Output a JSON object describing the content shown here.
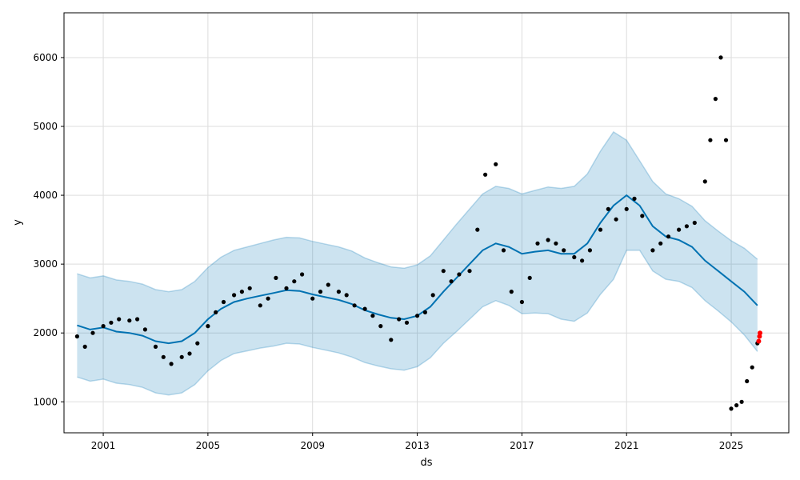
{
  "chart_data": {
    "type": "line",
    "title": "",
    "xlabel": "ds",
    "ylabel": "y",
    "xlim": [
      1999.5,
      2027.2
    ],
    "ylim": [
      550,
      6650
    ],
    "grid": true,
    "x_ticks": [
      2001,
      2005,
      2009,
      2013,
      2017,
      2021,
      2025
    ],
    "y_ticks": [
      1000,
      2000,
      3000,
      4000,
      5000,
      6000
    ],
    "colors": {
      "forecast": "#0072B2",
      "uncertainty": "#0072B2",
      "observed": "#000000",
      "highlight": "#FF0000"
    },
    "series": [
      {
        "role": "forecast",
        "x": [
          2000.0,
          2000.5,
          2001.0,
          2001.5,
          2002.0,
          2002.5,
          2003.0,
          2003.5,
          2004.0,
          2004.5,
          2005.0,
          2005.5,
          2006.0,
          2006.5,
          2007.0,
          2007.5,
          2008.0,
          2008.5,
          2009.0,
          2009.5,
          2010.0,
          2010.5,
          2011.0,
          2011.5,
          2012.0,
          2012.5,
          2013.0,
          2013.5,
          2014.0,
          2014.5,
          2015.0,
          2015.5,
          2016.0,
          2016.5,
          2017.0,
          2017.5,
          2018.0,
          2018.5,
          2019.0,
          2019.5,
          2020.0,
          2020.5,
          2021.0,
          2021.5,
          2022.0,
          2022.5,
          2023.0,
          2023.5,
          2024.0,
          2024.5,
          2025.0,
          2025.5,
          2026.0
        ],
        "y": [
          2110,
          2050,
          2080,
          2020,
          2000,
          1960,
          1880,
          1850,
          1880,
          2000,
          2200,
          2350,
          2450,
          2500,
          2540,
          2580,
          2620,
          2610,
          2560,
          2520,
          2480,
          2420,
          2330,
          2270,
          2220,
          2200,
          2250,
          2380,
          2600,
          2800,
          3000,
          3200,
          3300,
          3250,
          3150,
          3180,
          3200,
          3150,
          3150,
          3300,
          3600,
          3850,
          4000,
          3850,
          3550,
          3400,
          3350,
          3250,
          3050,
          2900,
          2750,
          2600,
          2400
        ]
      },
      {
        "role": "uncertainty",
        "x": [
          2000.0,
          2000.5,
          2001.0,
          2001.5,
          2002.0,
          2002.5,
          2003.0,
          2003.5,
          2004.0,
          2004.5,
          2005.0,
          2005.5,
          2006.0,
          2006.5,
          2007.0,
          2007.5,
          2008.0,
          2008.5,
          2009.0,
          2009.5,
          2010.0,
          2010.5,
          2011.0,
          2011.5,
          2012.0,
          2012.5,
          2013.0,
          2013.5,
          2014.0,
          2014.5,
          2015.0,
          2015.5,
          2016.0,
          2016.5,
          2017.0,
          2017.5,
          2018.0,
          2018.5,
          2019.0,
          2019.5,
          2020.0,
          2020.5,
          2021.0,
          2021.5,
          2022.0,
          2022.5,
          2023.0,
          2023.5,
          2024.0,
          2024.5,
          2025.0,
          2025.5,
          2026.0
        ],
        "upper": [
          2860,
          2800,
          2830,
          2770,
          2750,
          2710,
          2630,
          2600,
          2630,
          2750,
          2950,
          3100,
          3200,
          3250,
          3300,
          3350,
          3390,
          3380,
          3330,
          3290,
          3250,
          3190,
          3090,
          3020,
          2960,
          2940,
          2990,
          3120,
          3350,
          3580,
          3800,
          4020,
          4130,
          4100,
          4020,
          4070,
          4120,
          4100,
          4130,
          4310,
          4640,
          4920,
          4800,
          4500,
          4200,
          4020,
          3950,
          3840,
          3630,
          3480,
          3340,
          3230,
          3070
        ],
        "lower": [
          1360,
          1300,
          1330,
          1270,
          1250,
          1210,
          1130,
          1100,
          1130,
          1250,
          1450,
          1600,
          1700,
          1740,
          1780,
          1810,
          1850,
          1840,
          1790,
          1750,
          1710,
          1650,
          1570,
          1520,
          1480,
          1460,
          1510,
          1640,
          1850,
          2020,
          2200,
          2380,
          2470,
          2400,
          2280,
          2290,
          2280,
          2200,
          2170,
          2290,
          2560,
          2780,
          3200,
          3200,
          2900,
          2780,
          2750,
          2660,
          2470,
          2320,
          2160,
          1970,
          1730
        ]
      },
      {
        "role": "observed",
        "x": [
          2000.0,
          2000.3,
          2000.6,
          2001.0,
          2001.3,
          2001.6,
          2002.0,
          2002.3,
          2002.6,
          2003.0,
          2003.3,
          2003.6,
          2004.0,
          2004.3,
          2004.6,
          2005.0,
          2005.3,
          2005.6,
          2006.0,
          2006.3,
          2006.6,
          2007.0,
          2007.3,
          2007.6,
          2008.0,
          2008.3,
          2008.6,
          2009.0,
          2009.3,
          2009.6,
          2010.0,
          2010.3,
          2010.6,
          2011.0,
          2011.3,
          2011.6,
          2012.0,
          2012.3,
          2012.6,
          2013.0,
          2013.3,
          2013.6,
          2014.0,
          2014.3,
          2014.6,
          2015.0,
          2015.3,
          2015.6,
          2016.0,
          2016.3,
          2016.6,
          2017.0,
          2017.3,
          2017.6,
          2018.0,
          2018.3,
          2018.6,
          2019.0,
          2019.3,
          2019.6,
          2020.0,
          2020.3,
          2020.6,
          2021.0,
          2021.3,
          2021.6,
          2022.0,
          2022.3,
          2022.6,
          2023.0,
          2023.3,
          2023.6,
          2024.0,
          2024.2,
          2024.4,
          2024.6,
          2024.8,
          2025.0,
          2025.2,
          2025.4,
          2025.6,
          2025.8,
          2026.0
        ],
        "y": [
          1950,
          1800,
          2000,
          2100,
          2150,
          2200,
          2180,
          2200,
          2050,
          1800,
          1650,
          1550,
          1650,
          1700,
          1850,
          2100,
          2300,
          2450,
          2550,
          2600,
          2650,
          2400,
          2500,
          2800,
          2650,
          2750,
          2850,
          2500,
          2600,
          2700,
          2600,
          2550,
          2400,
          2350,
          2250,
          2100,
          1900,
          2200,
          2150,
          2250,
          2300,
          2550,
          2900,
          2750,
          2850,
          2900,
          3500,
          4300,
          4450,
          3200,
          2600,
          2450,
          2800,
          3300,
          3350,
          3300,
          3200,
          3100,
          3050,
          3200,
          3500,
          3800,
          3650,
          3800,
          3950,
          3700,
          3200,
          3300,
          3400,
          3500,
          3550,
          3600,
          4200,
          4800,
          5400,
          6000,
          4800,
          900,
          950,
          1000,
          1300,
          1500,
          1850
        ]
      },
      {
        "role": "highlight",
        "x": [
          2026.05,
          2026.08,
          2026.1
        ],
        "y": [
          1880,
          1950,
          2000
        ]
      }
    ]
  }
}
